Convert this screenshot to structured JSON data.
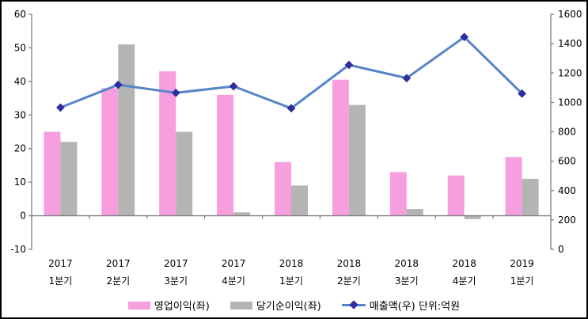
{
  "chart_data": {
    "type": "bar",
    "subtype": "combo-bar-line-dual-axis",
    "title": "",
    "grid": false,
    "categories": [
      {
        "year": "2017",
        "quarter": "1분기"
      },
      {
        "year": "2017",
        "quarter": "2분기"
      },
      {
        "year": "2017",
        "quarter": "3분기"
      },
      {
        "year": "2017",
        "quarter": "4분기"
      },
      {
        "year": "2018",
        "quarter": "1분기"
      },
      {
        "year": "2018",
        "quarter": "2분기"
      },
      {
        "year": "2018",
        "quarter": "3분기"
      },
      {
        "year": "2018",
        "quarter": "4분기"
      },
      {
        "year": "2019",
        "quarter": "1분기"
      }
    ],
    "series": [
      {
        "name": "영업이익(좌)",
        "render": "bar",
        "axis": "left",
        "color": "#F79EDE",
        "values": [
          25,
          38,
          43,
          36,
          16,
          40.5,
          13,
          12,
          17.5
        ]
      },
      {
        "name": "당기순이익(좌)",
        "render": "bar",
        "axis": "left",
        "color": "#B4B4B4",
        "values": [
          22,
          51,
          25,
          1,
          9,
          33,
          2,
          -1,
          11
        ]
      },
      {
        "name": "매출액(우)",
        "render": "line",
        "axis": "right",
        "color": "#5585C6",
        "marker": "diamond",
        "marker_color": "#2E2C9E",
        "values": [
          965,
          1120,
          1065,
          1110,
          960,
          1255,
          1165,
          1445,
          1060
        ]
      }
    ],
    "left_axis": {
      "min": -10,
      "max": 60,
      "step": 10,
      "ticks": [
        60,
        50,
        40,
        30,
        20,
        10,
        0,
        -10
      ]
    },
    "right_axis": {
      "min": 0,
      "max": 1600,
      "step": 200,
      "ticks": [
        1600,
        1400,
        1200,
        1000,
        800,
        600,
        400,
        200,
        0
      ]
    },
    "unit_annotation": "단위:억원",
    "legend": {
      "position": "bottom",
      "items": [
        {
          "label": "영업이익(좌)"
        },
        {
          "label": "당기순이익(좌)"
        },
        {
          "label": "매출액(우) 단위:억원"
        }
      ]
    },
    "colors": {
      "axis": "#808080",
      "text": "#000000",
      "background": "#FFFFFF"
    }
  }
}
